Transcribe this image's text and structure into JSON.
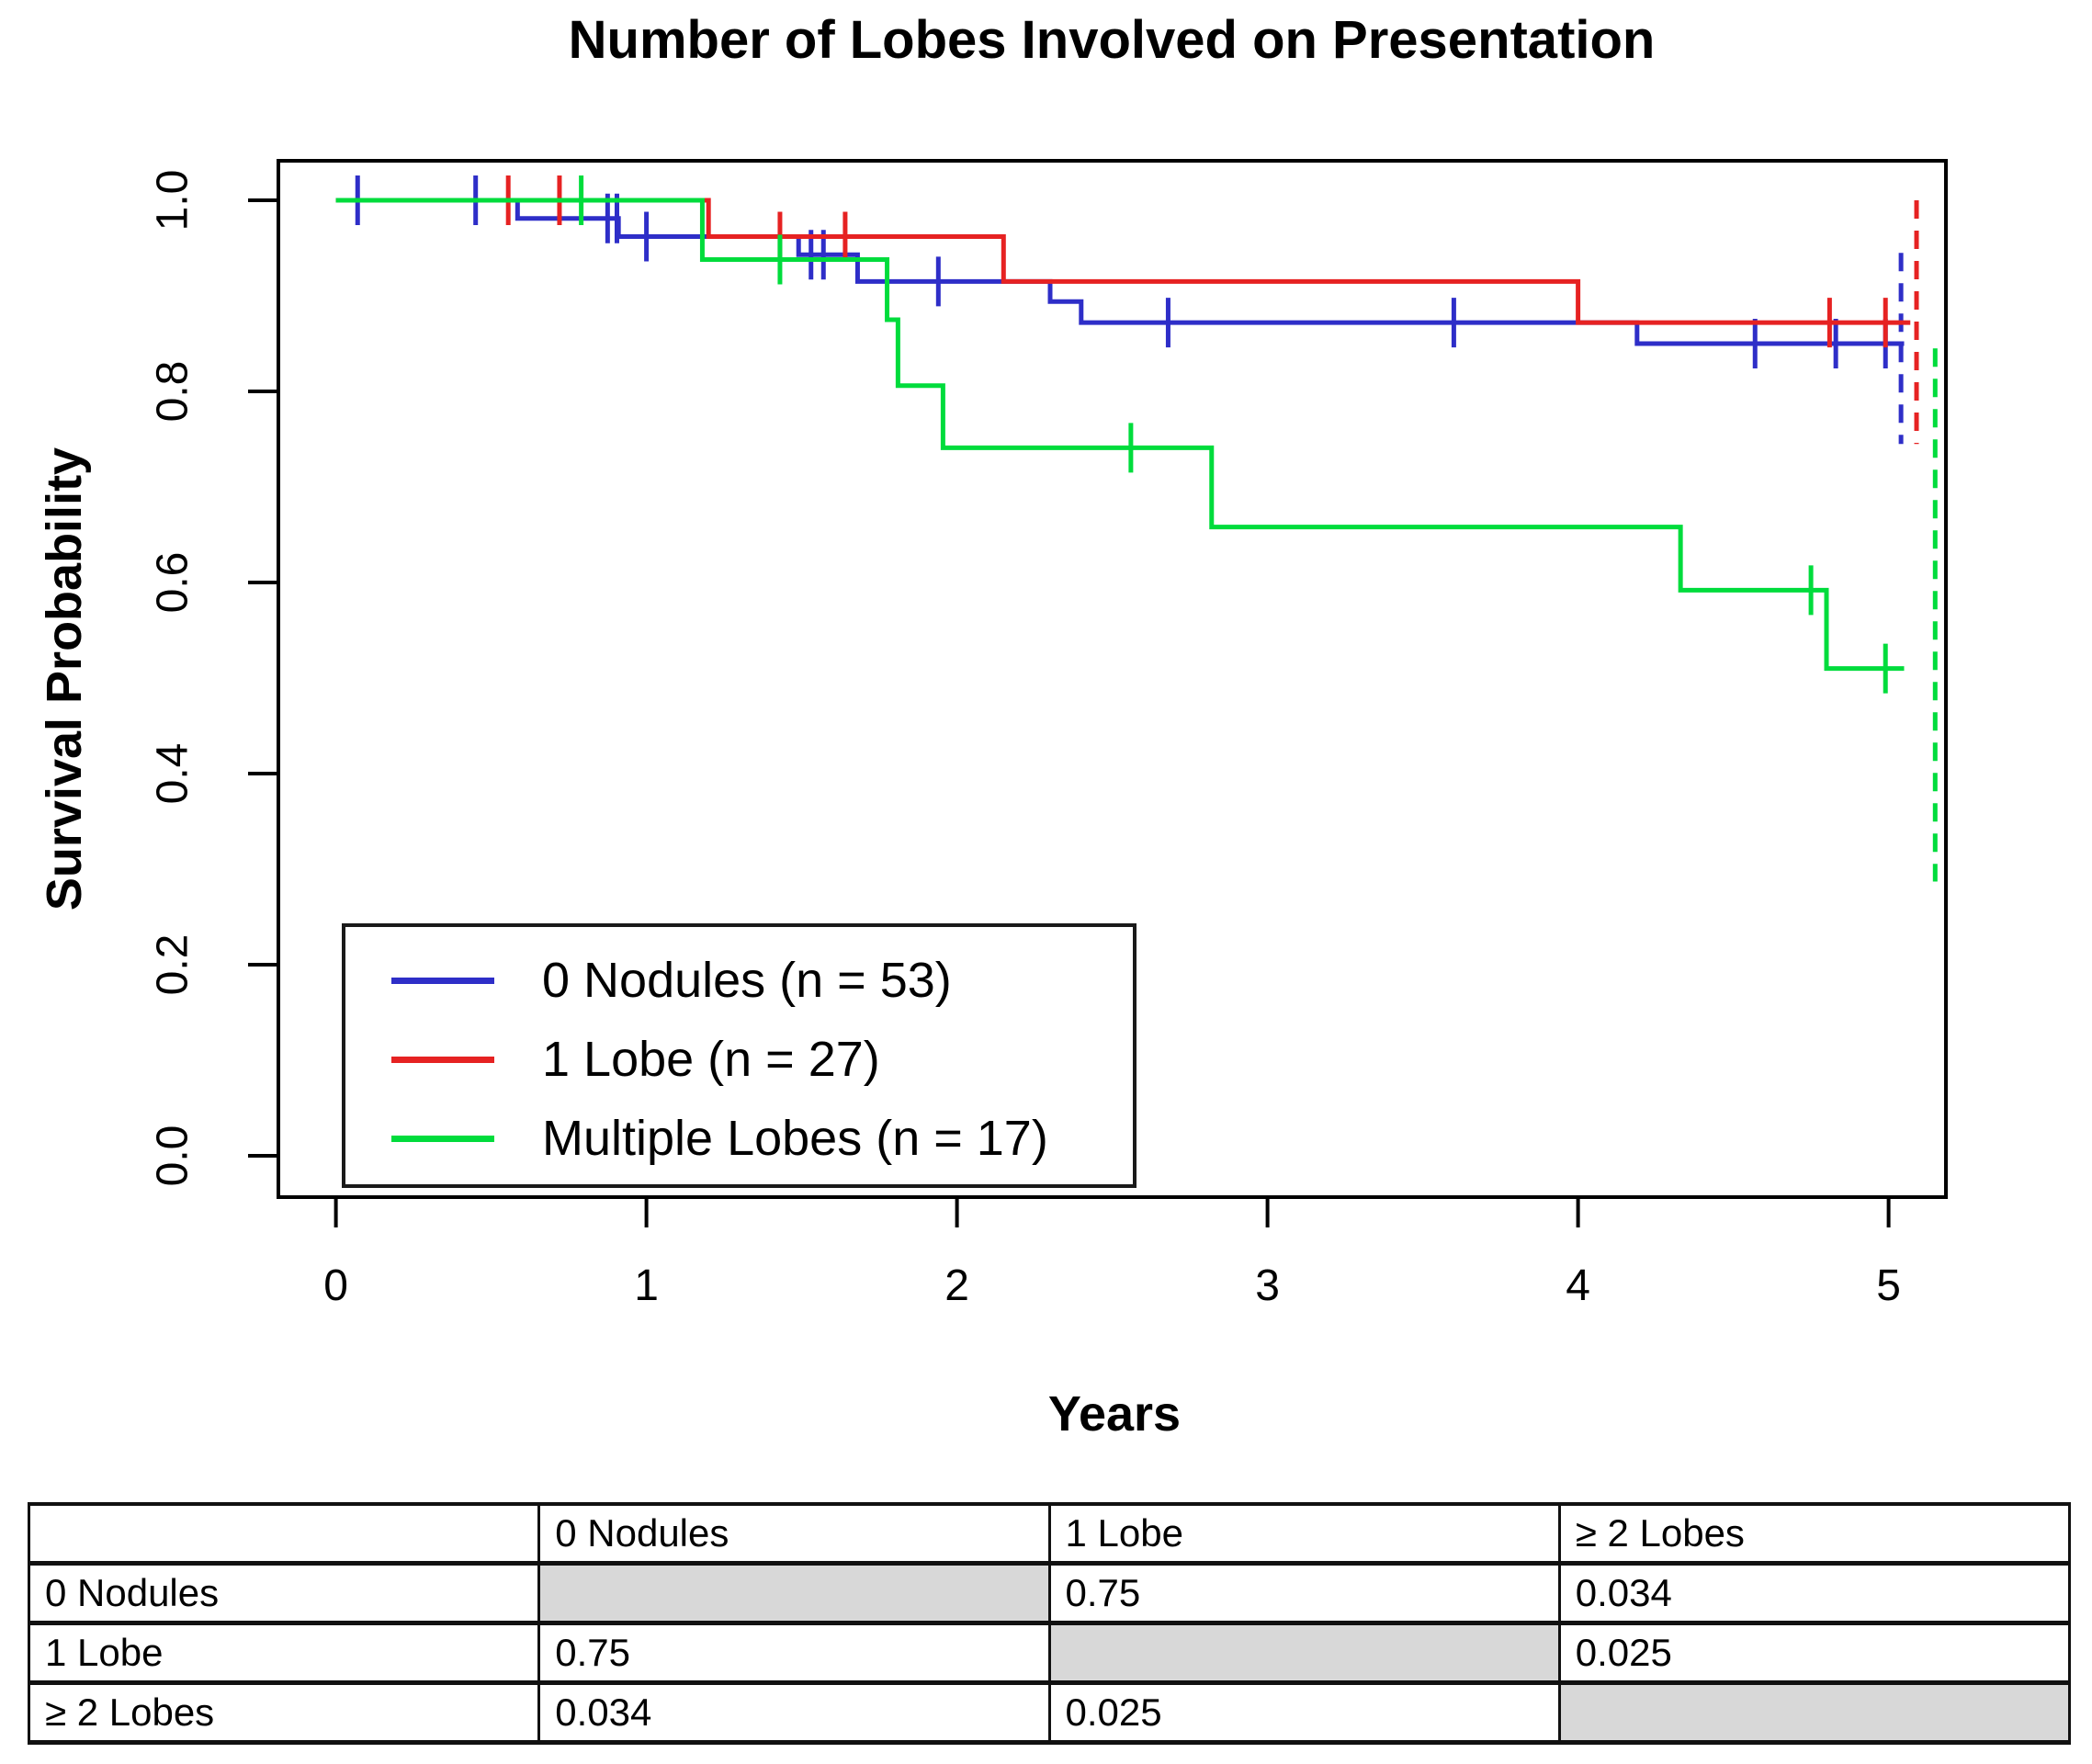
{
  "title": "Number of Lobes Involved on Presentation",
  "chart_data": {
    "type": "line",
    "subtype": "kaplan-meier-step",
    "title": "Number of Lobes Involved on Presentation",
    "xlabel": "Years",
    "ylabel": "Survival Probability",
    "xlim": [
      0,
      5.2
    ],
    "ylim": [
      0.0,
      1.0
    ],
    "grid": false,
    "legend_position": "inside-bottom-left",
    "x_ticks": [
      0,
      1,
      2,
      3,
      4,
      5
    ],
    "x_tick_labels": [
      "0",
      "1",
      "2",
      "3",
      "4",
      "5"
    ],
    "y_ticks": [
      0.0,
      0.2,
      0.4,
      0.6,
      0.8,
      1.0
    ],
    "y_tick_labels": [
      "0.0",
      "0.2",
      "0.4",
      "0.6",
      "0.8",
      "1.0"
    ],
    "series": [
      {
        "name": "0 Nodules (n = 53)",
        "color": "#2E2EC8",
        "levels": [
          [
            0,
            0.585,
            1.0
          ],
          [
            0.585,
            0.91,
            0.981
          ],
          [
            0.91,
            1.49,
            0.962
          ],
          [
            1.49,
            1.68,
            0.943
          ],
          [
            1.68,
            2.3,
            0.915
          ],
          [
            2.3,
            2.4,
            0.894
          ],
          [
            2.4,
            4.19,
            0.872
          ],
          [
            4.19,
            5.05,
            0.85
          ]
        ],
        "censor_marks": [
          [
            0.07,
            1.0
          ],
          [
            0.45,
            1.0
          ],
          [
            0.875,
            0.981
          ],
          [
            0.905,
            0.981
          ],
          [
            1.0,
            0.962
          ],
          [
            1.53,
            0.943
          ],
          [
            1.57,
            0.943
          ],
          [
            1.94,
            0.915
          ],
          [
            2.68,
            0.872
          ],
          [
            3.6,
            0.872
          ],
          [
            4.57,
            0.85
          ],
          [
            4.83,
            0.85
          ],
          [
            4.99,
            0.85
          ]
        ],
        "terminal_dash": {
          "t": 5.04,
          "s_from": 0.945,
          "s_to": 0.745
        }
      },
      {
        "name": "1 Lobe (n = 27)",
        "color": "#E62222",
        "levels": [
          [
            0,
            1.2,
            1.0
          ],
          [
            1.2,
            2.15,
            0.962
          ],
          [
            2.15,
            4.0,
            0.915
          ],
          [
            4.0,
            5.07,
            0.872
          ]
        ],
        "censor_marks": [
          [
            0.555,
            1.0
          ],
          [
            0.72,
            1.0
          ],
          [
            1.43,
            0.962
          ],
          [
            1.64,
            0.962
          ],
          [
            4.81,
            0.872
          ],
          [
            4.99,
            0.872
          ]
        ],
        "terminal_dash": {
          "t": 5.09,
          "s_from": 1.0,
          "s_to": 0.745
        }
      },
      {
        "name": "Multiple Lobes (n = 17)",
        "color": "#00DC3C",
        "levels": [
          [
            0,
            1.18,
            1.0
          ],
          [
            1.18,
            1.775,
            0.938
          ],
          [
            1.775,
            1.81,
            0.875
          ],
          [
            1.81,
            1.955,
            0.806
          ],
          [
            1.955,
            2.82,
            0.741
          ],
          [
            2.82,
            4.33,
            0.658
          ],
          [
            4.33,
            4.8,
            0.592
          ],
          [
            4.8,
            5.05,
            0.51
          ]
        ],
        "censor_marks": [
          [
            0.79,
            1.0
          ],
          [
            1.43,
            0.938
          ],
          [
            2.56,
            0.741
          ],
          [
            4.75,
            0.592
          ],
          [
            4.99,
            0.51
          ]
        ],
        "terminal_dash": {
          "t": 5.15,
          "s_from": 0.845,
          "s_to": 0.287
        }
      }
    ]
  },
  "p_value_table": {
    "header": [
      "",
      "0 Nodules",
      "1 Lobe",
      "≥ 2 Lobes"
    ],
    "rows": [
      {
        "label": "0 Nodules",
        "cells": [
          "",
          "0.75",
          "0.034"
        ]
      },
      {
        "label": "1 Lobe",
        "cells": [
          "0.75",
          "",
          "0.025"
        ]
      },
      {
        "label": "≥ 2 Lobes",
        "cells": [
          "0.034",
          "0.025",
          ""
        ]
      }
    ],
    "shaded_color": "#d8d8d8"
  }
}
